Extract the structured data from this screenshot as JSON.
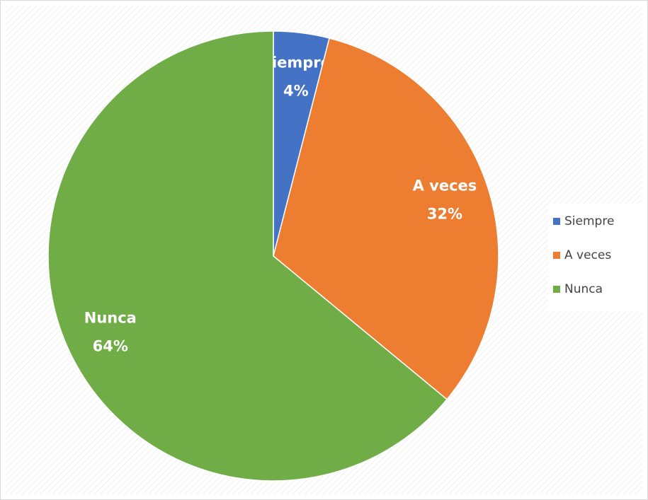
{
  "chart_data": {
    "type": "pie",
    "categories": [
      "Siempre",
      "A veces",
      "Nunca"
    ],
    "values": [
      4,
      32,
      64
    ],
    "value_labels": [
      "4%",
      "32%",
      "64%"
    ],
    "colors": [
      "#4472c4",
      "#ed7d31",
      "#70ad47"
    ],
    "legend": "right"
  }
}
